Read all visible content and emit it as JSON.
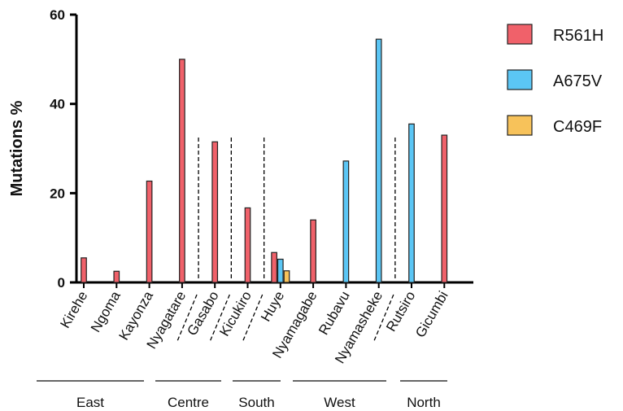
{
  "chart_data": {
    "type": "bar",
    "title": "",
    "xlabel": "",
    "ylabel": "Mutations %",
    "ylim": [
      0,
      60
    ],
    "yticks": [
      0,
      20,
      40,
      60
    ],
    "categories": [
      "Kirehe",
      "Ngoma",
      "Kayonza",
      "Nyagatare",
      "Gasabo",
      "Kicukiro",
      "Huye",
      "Nyamagabe",
      "Rubavu",
      "Nyamasheke",
      "Rutsiro",
      "Gicumbi"
    ],
    "series": [
      {
        "name": "R561H",
        "color": "#f0616a",
        "values": [
          5.5,
          2.5,
          22.7,
          50.0,
          31.5,
          16.7,
          6.7,
          14.0,
          0,
          0,
          0,
          33.0
        ]
      },
      {
        "name": "A675V",
        "color": "#5bc6f5",
        "values": [
          0,
          0,
          0,
          0,
          0,
          0,
          5.2,
          0,
          27.2,
          54.5,
          35.5,
          0
        ]
      },
      {
        "name": "C469F",
        "color": "#f7c25a",
        "values": [
          0,
          0,
          0,
          0,
          0,
          0,
          2.6,
          0,
          0,
          0,
          0,
          0
        ]
      }
    ],
    "regions": [
      {
        "name": "East",
        "from": 0,
        "to": 3
      },
      {
        "name": "Centre",
        "from": 4,
        "to": 4
      },
      {
        "name": "South",
        "from": 5,
        "to": 5
      },
      {
        "name": "West",
        "from": 6,
        "to": 9
      },
      {
        "name": "North",
        "from": 10,
        "to": 11
      }
    ],
    "legend_position": "top-right"
  }
}
